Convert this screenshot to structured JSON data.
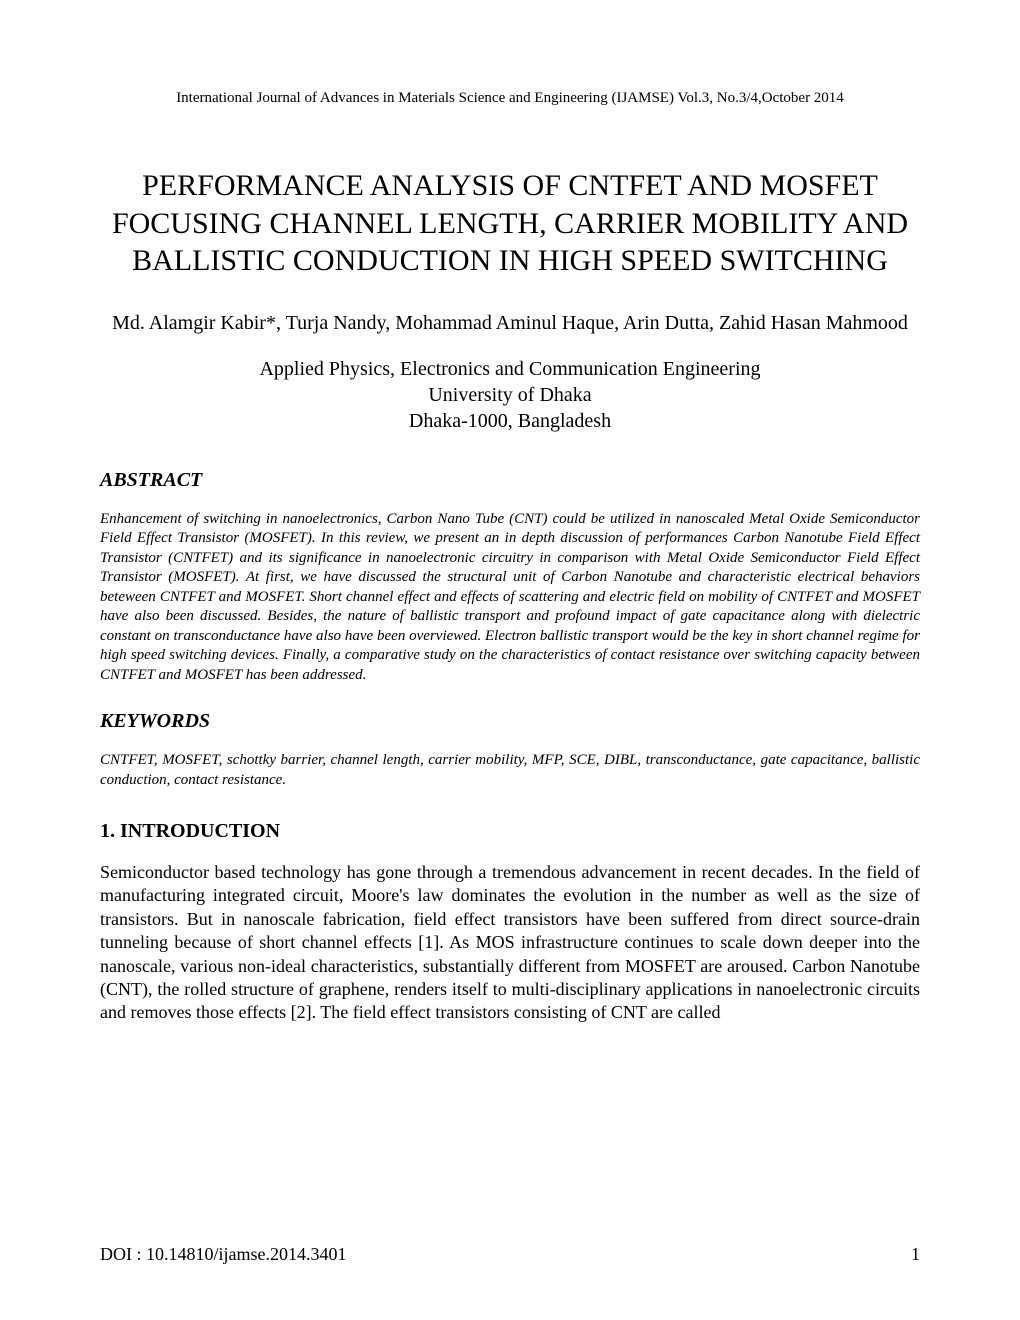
{
  "header": {
    "journal": "International Journal of Advances in Materials Science and Engineering (IJAMSE) Vol.3, No.3/4,October 2014"
  },
  "title": "PERFORMANCE ANALYSIS OF CNTFET AND MOSFET FOCUSING CHANNEL LENGTH, CARRIER MOBILITY AND BALLISTIC CONDUCTION IN HIGH SPEED SWITCHING",
  "authors": "Md. Alamgir Kabir*, Turja Nandy, Mohammad Aminul Haque, Arin Dutta, Zahid Hasan Mahmood",
  "affiliation": {
    "dept": "Applied Physics, Electronics and Communication Engineering",
    "university": "University of Dhaka",
    "location": "Dhaka-1000, Bangladesh"
  },
  "sections": {
    "abstract_heading": "ABSTRACT",
    "abstract_text": "Enhancement of switching in nanoelectronics, Carbon Nano Tube (CNT) could be utilized in nanoscaled Metal Oxide Semiconductor Field Effect Transistor (MOSFET). In this review, we present an in depth discussion of performances Carbon Nanotube Field Effect Transistor (CNTFET) and its significance in nanoelectronic circuitry in comparison with Metal Oxide Semiconductor Field Effect Transistor (MOSFET). At first, we have discussed the structural unit of Carbon Nanotube and characteristic electrical behaviors beteween CNTFET and MOSFET. Short channel effect and effects of scattering and electric field on mobility of CNTFET and MOSFET have also been discussed. Besides, the nature of ballistic transport and profound impact of gate capacitance along with dielectric constant on transconductance have also have been overviewed. Electron ballistic transport would be the key in short channel regime for high speed switching devices. Finally, a comparative study on the characteristics of contact resistance over switching capacity between CNTFET and MOSFET has been addressed.",
    "keywords_heading": "KEYWORDS",
    "keywords_text": "CNTFET, MOSFET, schottky barrier, channel length, carrier mobility, MFP, SCE, DIBL, transconductance, gate capacitance, ballistic conduction, contact resistance.",
    "intro_heading": "1. INTRODUCTION",
    "intro_text": "Semiconductor based technology has gone through a tremendous advancement in recent decades. In the field of manufacturing integrated circuit, Moore's law dominates the evolution in the number as well as the size of transistors. But in nanoscale fabrication, field effect transistors have been suffered from direct source-drain tunneling because of short channel effects [1]. As MOS infrastructure continues to scale down deeper into the nanoscale, various non-ideal characteristics, substantially different from MOSFET are aroused. Carbon Nanotube (CNT), the rolled structure of graphene, renders itself to multi-disciplinary applications in nanoelectronic circuits and removes those effects [2]. The field effect transistors consisting of CNT are called"
  },
  "footer": {
    "doi": "DOI : 10.14810/ijamse.2014.3401",
    "page": "1"
  }
}
